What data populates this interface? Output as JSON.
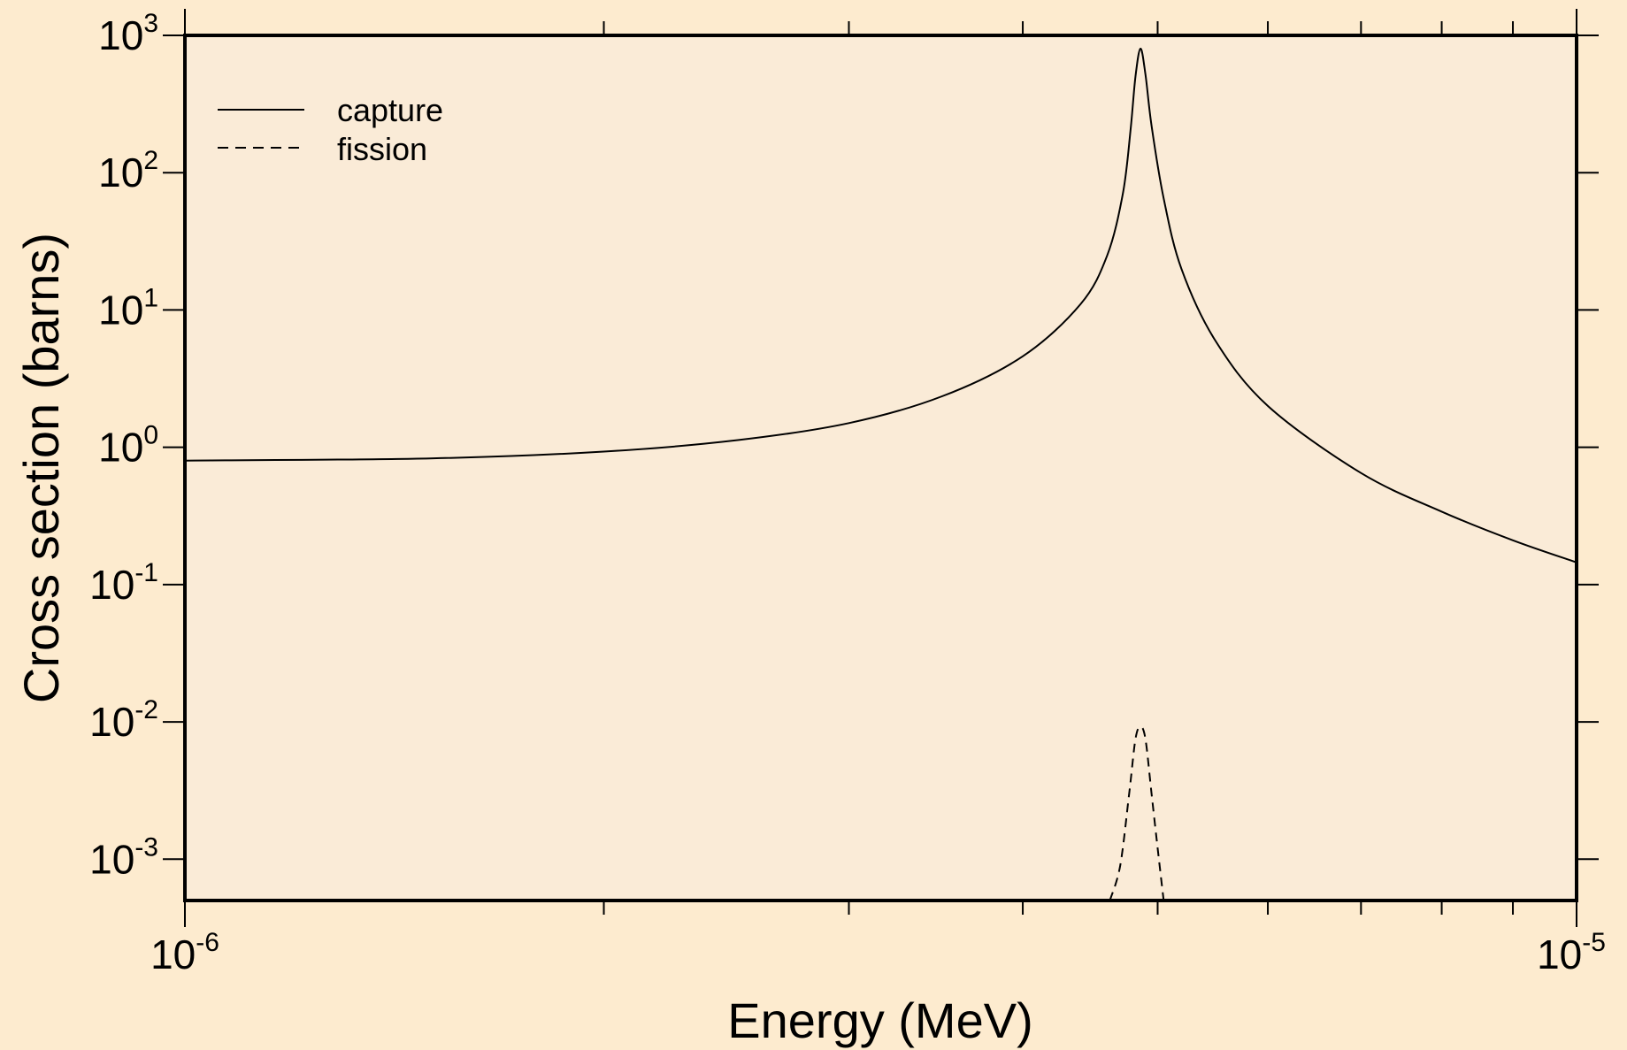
{
  "chart_data": {
    "type": "line",
    "title": "",
    "xlabel": "Energy (MeV)",
    "ylabel": "Cross section (barns)",
    "xscale": "log",
    "yscale": "log",
    "xlim": [
      1e-06,
      1e-05
    ],
    "ylim": [
      0.0005,
      1000
    ],
    "x_ticks": [
      {
        "base": "10",
        "exp": "-6"
      },
      {
        "base": "10",
        "exp": "-5"
      }
    ],
    "y_ticks": [
      {
        "base": "10",
        "exp": "-3",
        "value": 0.001
      },
      {
        "base": "10",
        "exp": "-2",
        "value": 0.01
      },
      {
        "base": "10",
        "exp": "-1",
        "value": 0.1
      },
      {
        "base": "10",
        "exp": "0",
        "value": 1
      },
      {
        "base": "10",
        "exp": "1",
        "value": 10
      },
      {
        "base": "10",
        "exp": "2",
        "value": 100
      },
      {
        "base": "10",
        "exp": "3",
        "value": 1000
      }
    ],
    "grid": false,
    "legend_position": "top-left",
    "background_color": "#fdebcf",
    "plot_area_color": "#faebd7",
    "series": [
      {
        "name": "capture",
        "style": "solid",
        "color": "#000000",
        "points": [
          [
            1e-06,
            0.8
          ],
          [
            1.5e-06,
            0.83
          ],
          [
            2e-06,
            0.93
          ],
          [
            2.5e-06,
            1.13
          ],
          [
            3e-06,
            1.5
          ],
          [
            3.5e-06,
            2.35
          ],
          [
            4e-06,
            4.6
          ],
          [
            4.4e-06,
            11.0
          ],
          [
            4.6e-06,
            25.0
          ],
          [
            4.72e-06,
            70.0
          ],
          [
            4.78e-06,
            200.0
          ],
          [
            4.82e-06,
            500.0
          ],
          [
            4.86e-06,
            800.0
          ],
          [
            4.9e-06,
            520.0
          ],
          [
            4.95e-06,
            220.0
          ],
          [
            5.05e-06,
            65.0
          ],
          [
            5.2e-06,
            20.0
          ],
          [
            5.5e-06,
            6.0
          ],
          [
            6e-06,
            2.0
          ],
          [
            7e-06,
            0.65
          ],
          [
            8e-06,
            0.34
          ],
          [
            9e-06,
            0.21
          ],
          [
            1e-05,
            0.145
          ]
        ]
      },
      {
        "name": "fission",
        "style": "dashed",
        "color": "#000000",
        "points": [
          [
            4.62e-06,
            0.0005
          ],
          [
            4.7e-06,
            0.0009
          ],
          [
            4.77e-06,
            0.003
          ],
          [
            4.82e-06,
            0.0075
          ],
          [
            4.86e-06,
            0.0092
          ],
          [
            4.9e-06,
            0.0075
          ],
          [
            4.95e-06,
            0.003
          ],
          [
            5e-06,
            0.0012
          ],
          [
            5.05e-06,
            0.0005
          ]
        ]
      }
    ]
  }
}
